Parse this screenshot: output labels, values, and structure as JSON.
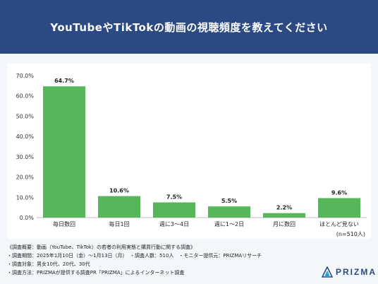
{
  "header": {
    "title": "YouTubeやTikTokの動画の視聴頻度を教えてください"
  },
  "chart_data": {
    "type": "bar",
    "categories": [
      "毎日数回",
      "毎日1回",
      "週に3～4日",
      "週に1～2日",
      "月に数回",
      "ほとんど見ない"
    ],
    "values": [
      64.7,
      10.6,
      7.5,
      5.5,
      2.2,
      9.6
    ],
    "data_labels": [
      "64.7%",
      "10.6%",
      "7.5%",
      "5.5%",
      "2.2%",
      "9.6%"
    ],
    "y_ticks": [
      "0.0%",
      "10.0%",
      "20.0%",
      "30.0%",
      "40.0%",
      "50.0%",
      "60.0%",
      "70.0%"
    ],
    "ylim": [
      0,
      70
    ],
    "grid": false,
    "bar_color": "#55b65a",
    "note": "(n=510人)"
  },
  "notes": [
    "《調査概要：動画（YouTube、TikTok）の若者の利用実態と購買行動に関する調査》",
    "・調査期間：2025年1月10日（金）～1月13日（月）　・調査人数：510人　・モニター提供元：PRIZMAリサーチ",
    "・調査対象：男女10代、20代、30代",
    "・調査方法：PRIZMAが提供する調査PR「PRIZMA」によるインターネット調査"
  ],
  "brand": {
    "name": "PRIZMA",
    "color": "#2b4a83",
    "accent": "#27a2c8"
  }
}
